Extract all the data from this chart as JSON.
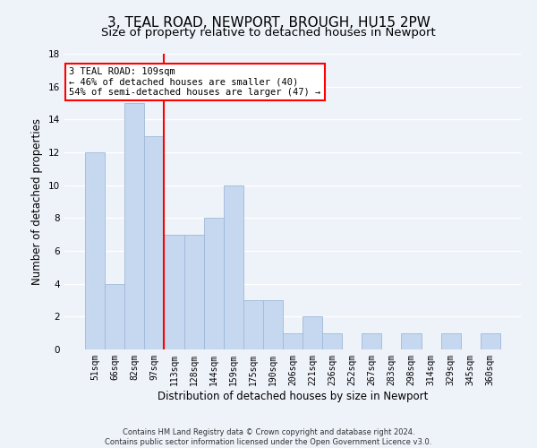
{
  "title": "3, TEAL ROAD, NEWPORT, BROUGH, HU15 2PW",
  "subtitle": "Size of property relative to detached houses in Newport",
  "xlabel": "Distribution of detached houses by size in Newport",
  "ylabel": "Number of detached properties",
  "categories": [
    "51sqm",
    "66sqm",
    "82sqm",
    "97sqm",
    "113sqm",
    "128sqm",
    "144sqm",
    "159sqm",
    "175sqm",
    "190sqm",
    "206sqm",
    "221sqm",
    "236sqm",
    "252sqm",
    "267sqm",
    "283sqm",
    "298sqm",
    "314sqm",
    "329sqm",
    "345sqm",
    "360sqm"
  ],
  "values": [
    12,
    4,
    15,
    13,
    7,
    7,
    8,
    10,
    3,
    3,
    1,
    2,
    1,
    0,
    1,
    0,
    1,
    0,
    1,
    0,
    1
  ],
  "bar_color": "#c5d8f0",
  "bar_edge_color": "#a0b8d8",
  "vline_index": 4,
  "vline_color": "red",
  "annotation_line1": "3 TEAL ROAD: 109sqm",
  "annotation_line2": "← 46% of detached houses are smaller (40)",
  "annotation_line3": "54% of semi-detached houses are larger (47) →",
  "annotation_box_color": "white",
  "annotation_box_edge_color": "red",
  "ylim": [
    0,
    18
  ],
  "yticks": [
    0,
    2,
    4,
    6,
    8,
    10,
    12,
    14,
    16,
    18
  ],
  "footer_line1": "Contains HM Land Registry data © Crown copyright and database right 2024.",
  "footer_line2": "Contains public sector information licensed under the Open Government Licence v3.0.",
  "background_color": "#eef2f9",
  "grid_color": "#ffffff",
  "title_fontsize": 11,
  "subtitle_fontsize": 9.5,
  "tick_fontsize": 7,
  "ylabel_fontsize": 8.5,
  "xlabel_fontsize": 8.5,
  "annotation_fontsize": 7.5,
  "footer_fontsize": 6
}
